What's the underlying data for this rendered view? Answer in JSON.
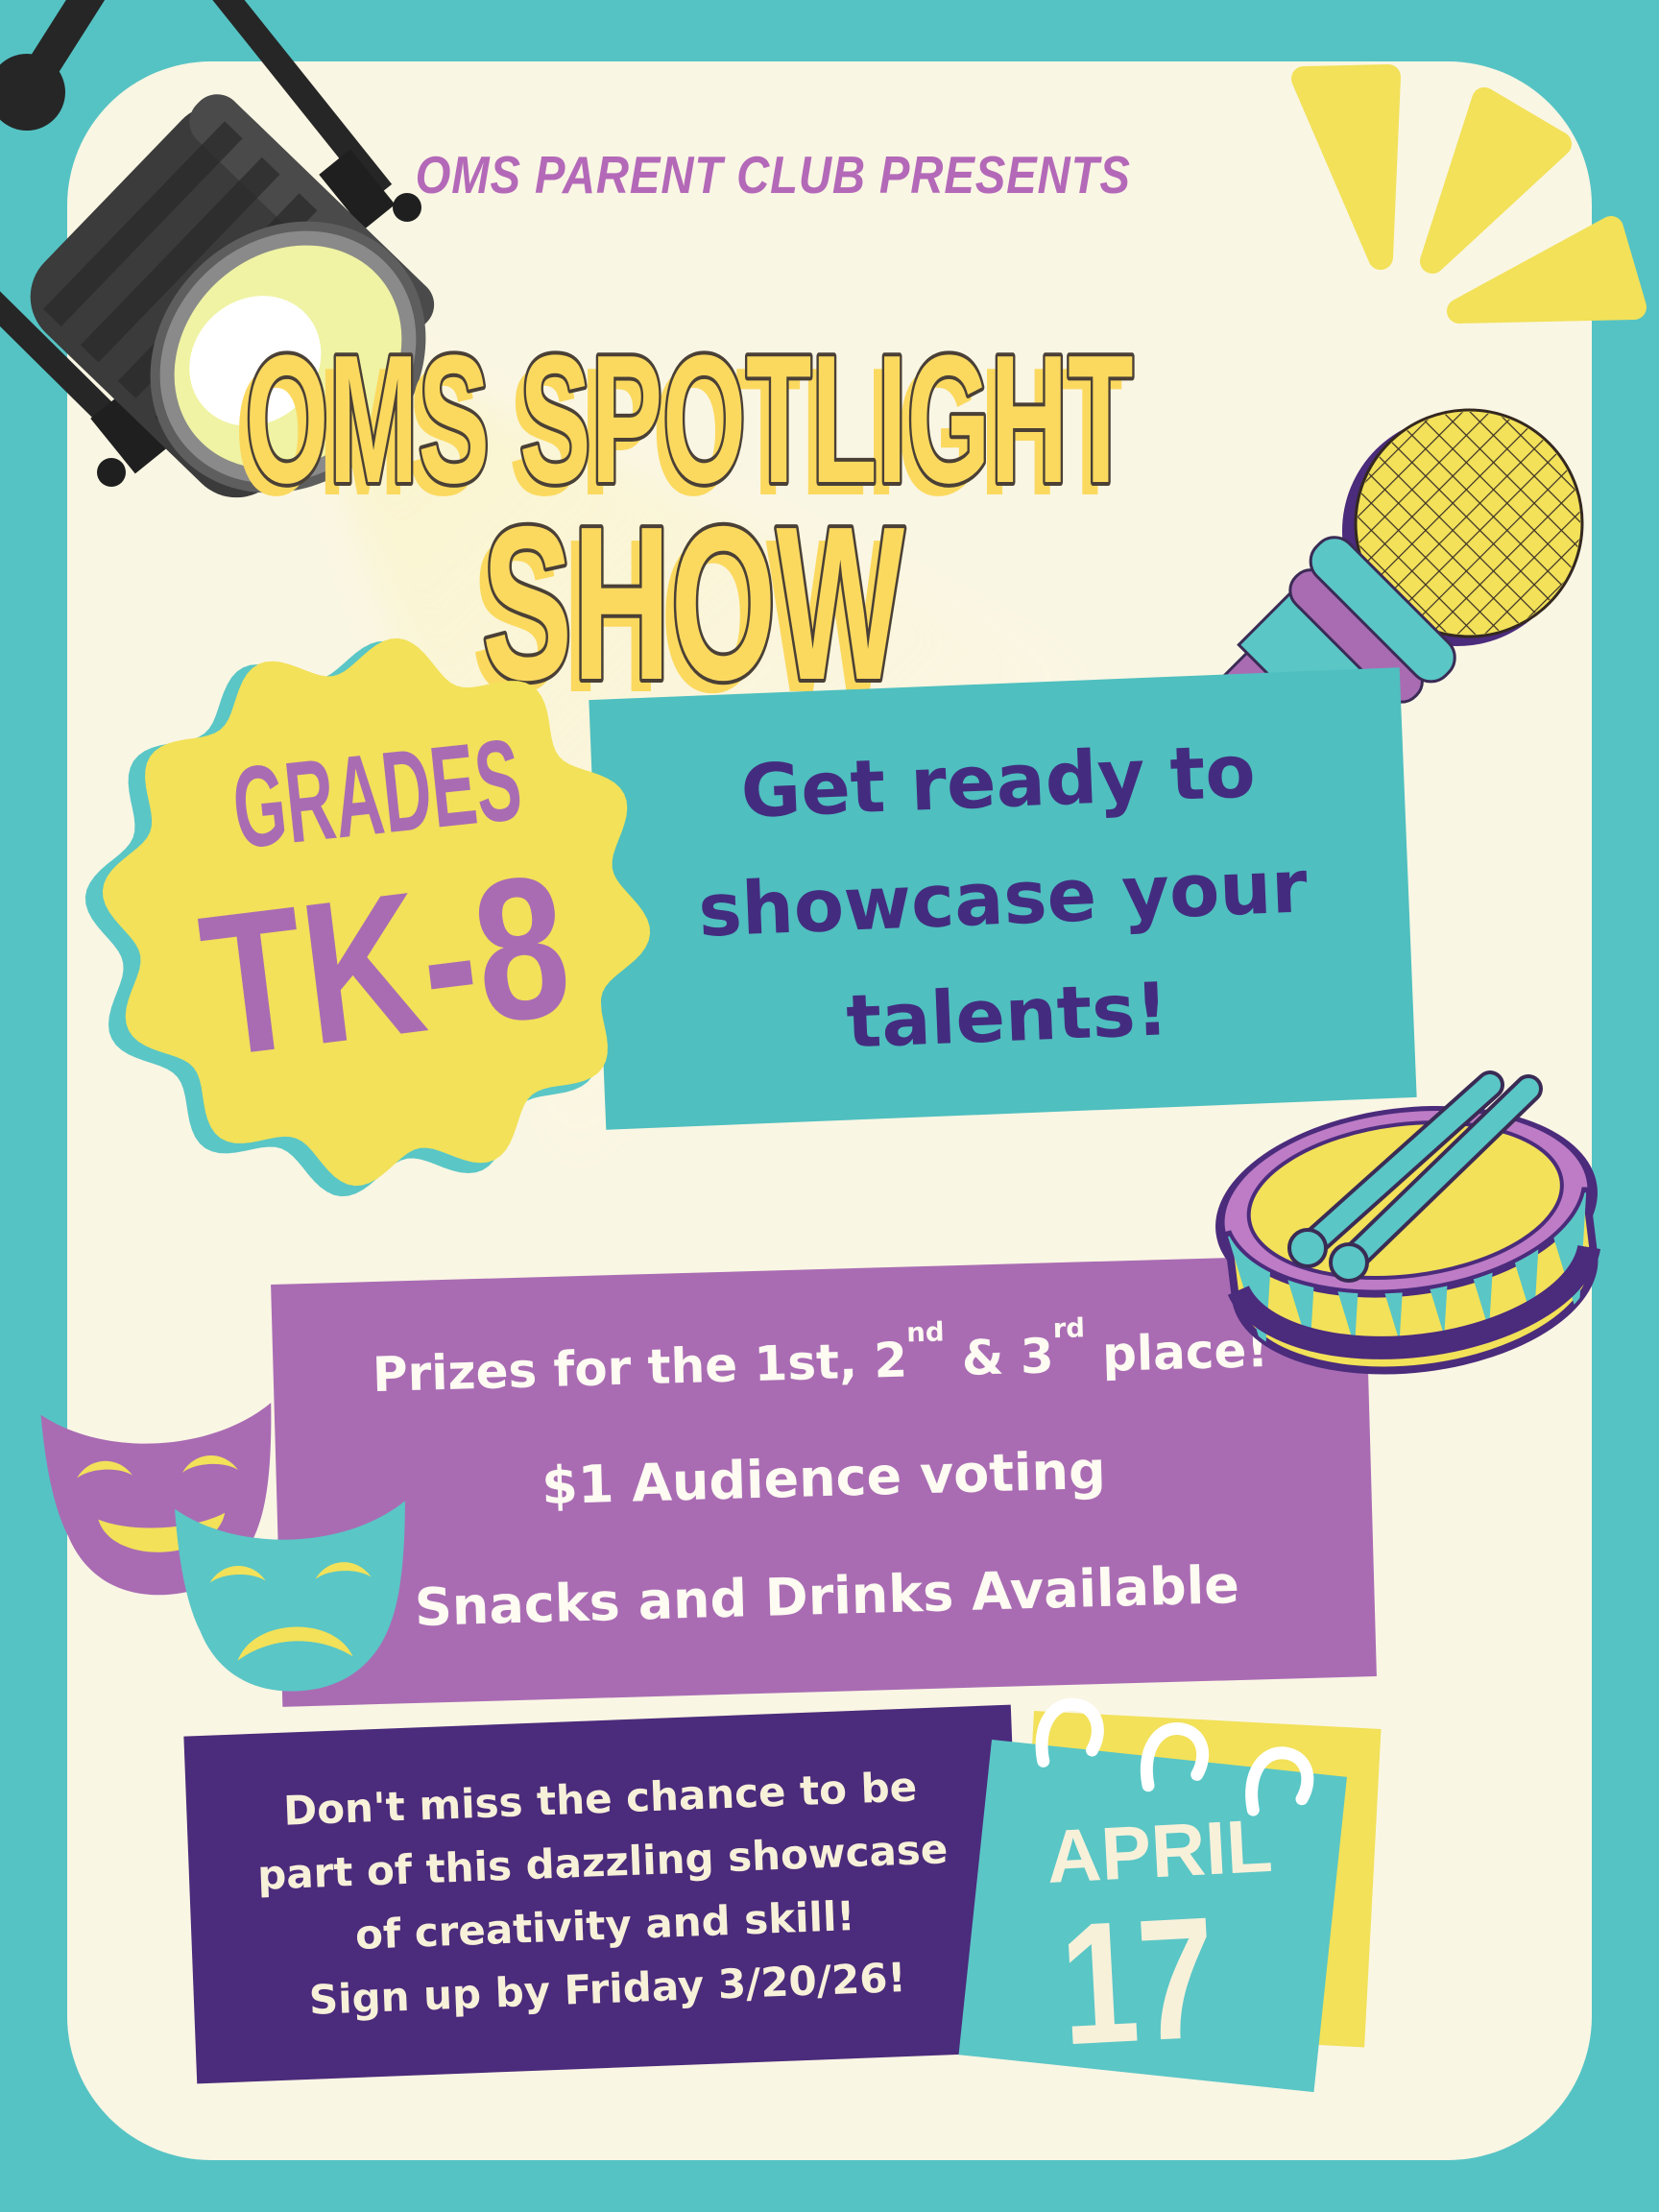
{
  "colors": {
    "bg-teal": "#55C3C4",
    "card-cream": "#FAF6E4",
    "yellow": "#F2E159",
    "title-yellow": "#FBD95F",
    "title-outline": "#4A4036",
    "header-purple": "#B369B8",
    "purple": "#A96CB3",
    "light-purple": "#BD7CC5",
    "dark-purple": "#4B2B7B",
    "deep-outline": "#3A2B55",
    "text-indigo": "#432C7F",
    "teal-box": "#4FBFBF",
    "teal-item": "#5AC6C6",
    "cream-text": "#F8F1DA",
    "white": "#FFFFFF",
    "spot-dark": "#262626",
    "spot-body": "#3B3B3B",
    "spot-stripe": "#2B2B2B",
    "spot-gray": "#8A8A8A",
    "lens-glow": "#EFF3A3",
    "mesh-dark": "#3B2F26",
    "beam": "#FBF3B0"
  },
  "header": {
    "presents": "OMS PARENT CLUB PRESENTS"
  },
  "title": {
    "line1": "OMS SPOTLIGHT",
    "line2": "SHOW"
  },
  "badge": {
    "grades": "GRADES",
    "range": "TK-8"
  },
  "intro": {
    "text": "Get ready to\nshowcase your\ntalents!"
  },
  "details": {
    "prizes": {
      "p1": "Prizes for the 1st, 2",
      "s1": "nd",
      "p2": " & 3",
      "s2": "rd",
      "p3": " place!"
    },
    "voting": "$1 Audience voting",
    "snacks": "Snacks and Drinks Available"
  },
  "cta": {
    "text": "Don't miss the chance to be\npart of this dazzling showcase\nof creativity and skill!\nSign up by Friday 3/20/26!"
  },
  "calendar": {
    "month": "APRIL",
    "day": "17"
  }
}
